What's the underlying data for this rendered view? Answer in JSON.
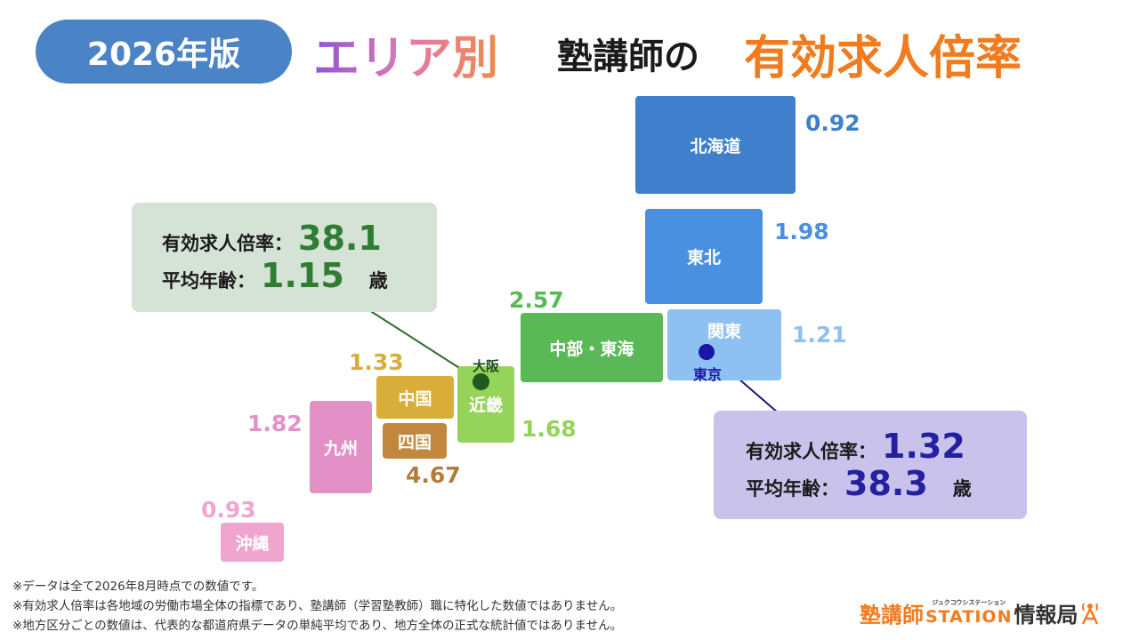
{
  "header": {
    "badge": "2026年版",
    "title_area": "エリア別",
    "title_mid": "塾講師の",
    "title_rate": "有効求人倍率"
  },
  "regions": {
    "hokkaido": {
      "name": "北海道",
      "value": "0.92",
      "color": "#3f7fcc",
      "value_color": "#3f7fcc"
    },
    "tohoku": {
      "name": "東北",
      "value": "1.98",
      "color": "#4a90e0",
      "value_color": "#4a90e0"
    },
    "kanto": {
      "name": "関東",
      "value": "1.21",
      "color": "#8ec1f2",
      "value_color": "#8ec1f2"
    },
    "chubu": {
      "name": "中部・東海",
      "value": "2.57",
      "color": "#5ab857",
      "value_color": "#5ab857"
    },
    "kinki": {
      "name": "近畿",
      "value": "1.68",
      "color": "#95d35a",
      "value_color": "#95d35a"
    },
    "chugoku": {
      "name": "中国",
      "value": "1.33",
      "color": "#d9ad3a",
      "value_color": "#d9ad3a"
    },
    "shikoku": {
      "name": "四国",
      "value": "4.67",
      "color": "#c0873d",
      "value_color": "#b07d3a"
    },
    "kyushu": {
      "name": "九州",
      "value": "1.82",
      "color": "#e390c6",
      "value_color": "#e390c6"
    },
    "okinawa": {
      "name": "沖縄",
      "value": "0.93",
      "color": "#efa5cf",
      "value_color": "#efa5cf"
    }
  },
  "cities": {
    "osaka": "大阪",
    "tokyo": "東京"
  },
  "info_osaka": {
    "rate_label": "有効求人倍率：",
    "rate_value": "38.1",
    "age_label": "平均年齢：",
    "age_value": "1.15",
    "age_unit": "歳",
    "bg": "#d5e2d6",
    "accent": "#2e7d32"
  },
  "info_tokyo": {
    "rate_label": "有効求人倍率：",
    "rate_value": "1.32",
    "age_label": "平均年齢：",
    "age_value": "38.3",
    "age_unit": "歳",
    "bg": "#c9c3ec",
    "accent": "#2520a0"
  },
  "notes": [
    "※データは全て2026年8月時点での数値です。",
    "※有効求人倍率は各地域の労働市場全体の指標であり、塾講師（学習塾教師）職に特化した数値ではありません。",
    "※地方区分ごとの数値は、代表的な都道府県データの単純平均であり、地方全体の正式な統計値ではありません。"
  ],
  "logo": {
    "main": "塾講師",
    "station": "STATION",
    "ruby": "ジュクコウシステーション",
    "tail": "情報局"
  }
}
